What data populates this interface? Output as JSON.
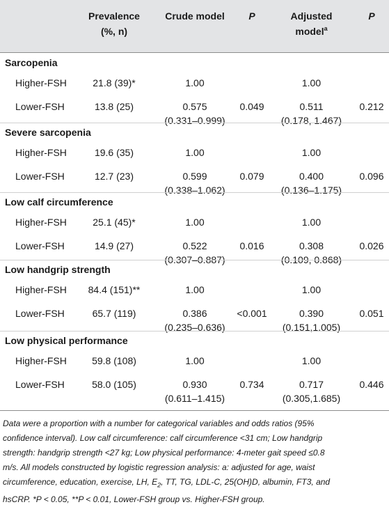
{
  "header": {
    "prevalence_line1": "Prevalence",
    "prevalence_line2": "(%, n)",
    "crude": "Crude model",
    "p1": "P",
    "adjusted_line1": "Adjusted",
    "adjusted_line2": "model",
    "adjusted_sup": "a",
    "p2": "P"
  },
  "sections": [
    {
      "title": "Sarcopenia",
      "rows": [
        {
          "group": "Higher-FSH",
          "prev": "21.8 (39)*",
          "crude": "1.00",
          "crude_ci": "",
          "p1": "",
          "adj": "1.00",
          "adj_ci": "",
          "p2": ""
        },
        {
          "group": "Lower-FSH",
          "prev": "13.8 (25)",
          "crude": "0.575",
          "crude_ci": "(0.331–0.999)",
          "p1": "0.049",
          "adj": "0.511",
          "adj_ci": "(0.178, 1.467)",
          "p2": "0.212"
        }
      ]
    },
    {
      "title": "Severe sarcopenia",
      "rows": [
        {
          "group": "Higher-FSH",
          "prev": "19.6 (35)",
          "crude": "1.00",
          "crude_ci": "",
          "p1": "",
          "adj": "1.00",
          "adj_ci": "",
          "p2": ""
        },
        {
          "group": "Lower-FSH",
          "prev": "12.7 (23)",
          "crude": "0.599",
          "crude_ci": "(0.338–1.062)",
          "p1": "0.079",
          "adj": "0.400",
          "adj_ci": "(0.136–1.175)",
          "p2": "0.096"
        }
      ]
    },
    {
      "title": "Low calf circumference",
      "rows": [
        {
          "group": "Higher-FSH",
          "prev": "25.1 (45)*",
          "crude": "1.00",
          "crude_ci": "",
          "p1": "",
          "adj": "1.00",
          "adj_ci": "",
          "p2": ""
        },
        {
          "group": "Lower-FSH",
          "prev": "14.9 (27)",
          "crude": "0.522",
          "crude_ci": "(0.307–0.887)",
          "p1": "0.016",
          "adj": "0.308",
          "adj_ci": "(0.109, 0.868)",
          "p2": "0.026"
        }
      ]
    },
    {
      "title": "Low handgrip strength",
      "rows": [
        {
          "group": "Higher-FSH",
          "prev": "84.4 (151)**",
          "crude": "1.00",
          "crude_ci": "",
          "p1": "",
          "adj": "1.00",
          "adj_ci": "",
          "p2": ""
        },
        {
          "group": "Lower-FSH",
          "prev": "65.7 (119)",
          "crude": "0.386",
          "crude_ci": "(0.235–0.636)",
          "p1": "<0.001",
          "adj": "0.390",
          "adj_ci": "(0.151,1.005)",
          "p2": "0.051"
        }
      ]
    },
    {
      "title": "Low physical performance",
      "rows": [
        {
          "group": "Higher-FSH",
          "prev": "59.8 (108)",
          "crude": "1.00",
          "crude_ci": "",
          "p1": "",
          "adj": "1.00",
          "adj_ci": "",
          "p2": ""
        },
        {
          "group": "Lower-FSH",
          "prev": "58.0 (105)",
          "crude": "0.930",
          "crude_ci": "(0.611–1.415)",
          "p1": "0.734",
          "adj": "0.717",
          "adj_ci": "(0.305,1.685)",
          "p2": "0.446"
        }
      ]
    }
  ],
  "footnote": {
    "l1": "Data were a proportion with a number for categorical variables and odds ratios (95%",
    "l2": "confidence interval). Low calf circumference: calf circumference <31 cm; Low handgrip",
    "l3": "strength: handgrip strength <27 kg; Low physical performance: 4-meter gait speed ≤0.8",
    "l4": "m/s. All models constructed by logistic regression analysis: a: adjusted for age, waist",
    "l5a": "circumference, education, exercise, LH, E",
    "l5sub": "2",
    "l5b": ", TT, TG, LDL-C, 25(OH)D, albumin, FT3, and",
    "l6": "hsCRP. *P < 0.05, **P < 0.01, Lower-FSH group vs. Higher-FSH group."
  }
}
